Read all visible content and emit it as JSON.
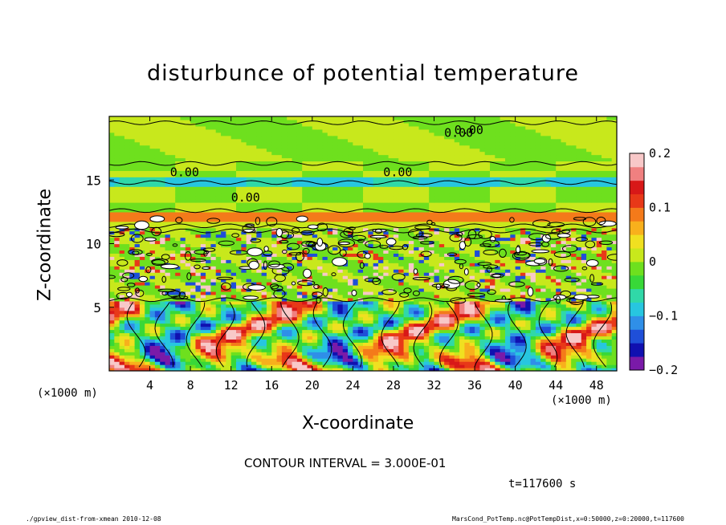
{
  "chart_data": {
    "type": "heatmap",
    "title": "disturbunce of potential temperature",
    "xlabel": "X-coordinate",
    "ylabel": "Z-coordinate",
    "x_unit_label": "(×1000 m)",
    "y_unit_label": "(×1000 m)",
    "xlim": [
      0,
      50
    ],
    "ylim": [
      0,
      20
    ],
    "x_ticks": [
      "4",
      "8",
      "12",
      "16",
      "20",
      "24",
      "28",
      "32",
      "36",
      "40",
      "44",
      "48"
    ],
    "x_tick_values": [
      4,
      8,
      12,
      16,
      20,
      24,
      28,
      32,
      36,
      40,
      44,
      48
    ],
    "y_ticks": [
      "5",
      "10",
      "15"
    ],
    "y_tick_values": [
      5,
      10,
      15
    ],
    "colorbar": {
      "range": [
        -0.2,
        0.2
      ],
      "tick_labels": [
        "0.2",
        "0.1",
        "0",
        "−0.1",
        "−0.2"
      ],
      "tick_values": [
        0.2,
        0.1,
        0,
        -0.1,
        -0.2
      ],
      "colors": [
        "#7a1aa8",
        "#1010b0",
        "#1f4fd8",
        "#2f8fe8",
        "#27c6e0",
        "#30d8a8",
        "#38d838",
        "#6ee01e",
        "#c8e81c",
        "#f0e020",
        "#f8b01c",
        "#f47a1a",
        "#e83818",
        "#d81818",
        "#f08080",
        "#f8c8c8"
      ]
    },
    "contour_labels": [
      "0.00",
      "0.00",
      "0.00",
      "0.00",
      "0.00"
    ],
    "contour_interval": "CONTOUR INTERVAL = 3.000E-01",
    "layers": [
      {
        "z_range": [
          16,
          20
        ],
        "value": 0.0
      },
      {
        "z_range": [
          12,
          16
        ],
        "value": 0.0
      },
      {
        "z_range": [
          11,
          12.5
        ],
        "value": 0.05
      },
      {
        "z_range": [
          5.5,
          11
        ],
        "value": 0.0
      },
      {
        "z_range": [
          0,
          5.5
        ],
        "value": -0.05
      }
    ]
  },
  "annotations": {
    "time": "t=117600 s",
    "footer_left": "./gpview_dist-from-xmean  2010-12-08",
    "footer_right": "MarsCond_PotTemp.nc@PotTempDist,x=0:50000,z=0:20000,t=117600"
  }
}
